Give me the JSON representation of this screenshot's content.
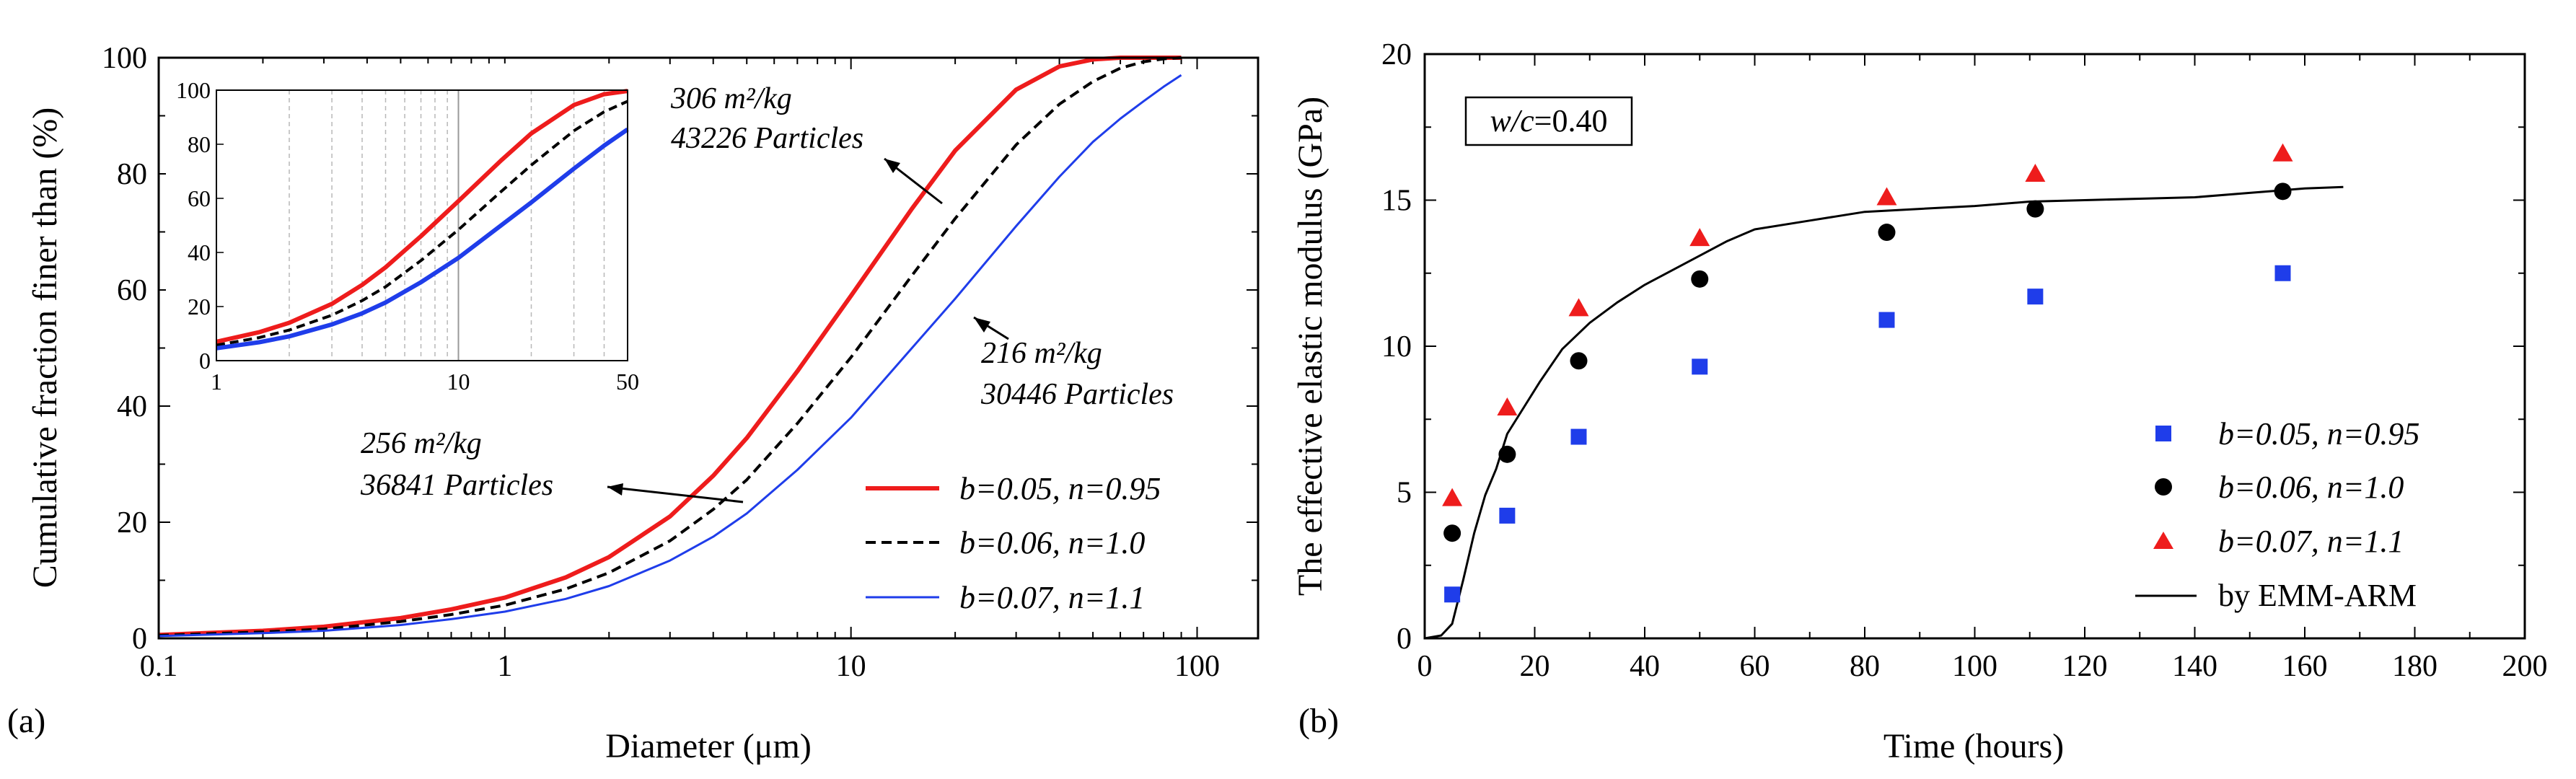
{
  "colors": {
    "red": "#ee1c1c",
    "blue": "#1f3dea",
    "black": "#000000"
  },
  "chart_data": [
    {
      "type": "line",
      "panel_label": "(a)",
      "xlabel": "Diameter (μm)",
      "ylabel": "Cumulative fraction finer than (%)",
      "xscale": "log",
      "xlim": [
        0.1,
        150
      ],
      "ylim": [
        0,
        100
      ],
      "x_ticks": [
        0.1,
        1,
        10,
        100
      ],
      "x_tick_labels": [
        "0.1",
        "1",
        "10",
        "100"
      ],
      "y_ticks": [
        0,
        20,
        40,
        60,
        80,
        100
      ],
      "y_tick_labels": [
        "0",
        "20",
        "40",
        "60",
        "80",
        "100"
      ],
      "x": [
        0.1,
        0.2,
        0.3,
        0.5,
        0.7,
        1,
        1.5,
        2,
        3,
        4,
        5,
        7,
        10,
        15,
        20,
        30,
        40,
        50,
        60,
        70,
        80,
        90
      ],
      "series": [
        {
          "name": "b=0.05, n=0.95",
          "color": "#ee1c1c",
          "style": "solid",
          "width": 6,
          "values": [
            0.6,
            1.3,
            2.0,
            3.5,
            5.0,
            7.0,
            10.5,
            14.0,
            21.0,
            28.0,
            34.5,
            46.0,
            59.0,
            74.0,
            84.0,
            94.5,
            98.5,
            99.7,
            100,
            100,
            100,
            100
          ]
        },
        {
          "name": "b=0.06, n=1.0",
          "color": "#000000",
          "style": "dashed",
          "width": 4,
          "values": [
            0.5,
            1.1,
            1.6,
            2.9,
            4.1,
            5.7,
            8.5,
            11.3,
            16.8,
            22.2,
            27.3,
            37.0,
            48.4,
            62.5,
            72.3,
            85.0,
            92.0,
            95.9,
            98.2,
            99.3,
            99.8,
            100
          ]
        },
        {
          "name": "b=0.07, n=1.1",
          "color": "#1f3dea",
          "style": "solid",
          "width": 3,
          "values": [
            0.4,
            0.9,
            1.3,
            2.3,
            3.3,
            4.6,
            6.8,
            9.0,
            13.4,
            17.5,
            21.5,
            29.0,
            38.0,
            50.0,
            58.5,
            71.0,
            79.5,
            85.5,
            89.5,
            92.5,
            95.0,
            97.0
          ]
        }
      ],
      "annotations": [
        {
          "line1": "306 m²/kg",
          "line2": "43226 Particles"
        },
        {
          "line1": "216 m²/kg",
          "line2": "30446 Particles"
        },
        {
          "line1": "256 m²/kg",
          "line2": "36841 Particles"
        }
      ],
      "legend_position": "bottom-right",
      "inset": {
        "xscale": "log",
        "xlim": [
          1,
          50
        ],
        "ylim": [
          0,
          100
        ],
        "x_tick_labels": [
          "1",
          "10",
          "50"
        ],
        "y_tick_labels": [
          "0",
          "20",
          "40",
          "60",
          "80",
          "100"
        ],
        "x": [
          1,
          1.5,
          2,
          3,
          4,
          5,
          7,
          10,
          15,
          20,
          30,
          40,
          50
        ],
        "series": [
          {
            "name": "b=0.05, n=0.95",
            "values": [
              7.0,
              10.5,
              14.0,
              21.0,
              28.0,
              34.5,
              46.0,
              59.0,
              74.0,
              84.0,
              94.5,
              98.5,
              99.7
            ]
          },
          {
            "name": "b=0.06, n=1.0",
            "values": [
              5.7,
              8.5,
              11.3,
              16.8,
              22.2,
              27.3,
              37.0,
              48.4,
              62.5,
              72.3,
              85.0,
              92.0,
              95.9
            ]
          },
          {
            "name": "b=0.07, n=1.1",
            "values": [
              4.6,
              6.8,
              9.0,
              13.4,
              17.5,
              21.5,
              29.0,
              38.0,
              50.0,
              58.5,
              71.0,
              79.5,
              85.5
            ]
          }
        ]
      }
    },
    {
      "type": "scatter",
      "panel_label": "(b)",
      "xlabel": "Time (hours)",
      "ylabel": "The effective elastic modulus (GPa)",
      "xlim": [
        0,
        200
      ],
      "ylim": [
        0,
        20
      ],
      "x_ticks": [
        0,
        20,
        40,
        60,
        80,
        100,
        120,
        140,
        160,
        180,
        200
      ],
      "x_tick_labels": [
        "0",
        "20",
        "40",
        "60",
        "80",
        "100",
        "120",
        "140",
        "160",
        "180",
        "200"
      ],
      "y_ticks": [
        0,
        5,
        10,
        15,
        20
      ],
      "y_tick_labels": [
        "0",
        "5",
        "10",
        "15",
        "20"
      ],
      "textbox": {
        "italic": "w/c",
        "rest": "=0.40"
      },
      "series": [
        {
          "name": "b=0.05, n=0.95",
          "marker": "square",
          "color": "#1f3dea",
          "x": [
            5,
            15,
            28,
            50,
            84,
            111,
            156
          ],
          "y": [
            1.5,
            4.2,
            6.9,
            9.3,
            10.9,
            11.7,
            12.5
          ]
        },
        {
          "name": "b=0.06, n=1.0",
          "marker": "circle",
          "color": "#000000",
          "x": [
            5,
            15,
            28,
            50,
            84,
            111,
            156
          ],
          "y": [
            3.6,
            6.3,
            9.5,
            12.3,
            13.9,
            14.7,
            15.3
          ]
        },
        {
          "name": "b=0.07, n=1.1",
          "marker": "triangle",
          "color": "#ee1c1c",
          "x": [
            5,
            15,
            28,
            50,
            84,
            111,
            156
          ],
          "y": [
            4.8,
            7.9,
            11.3,
            13.7,
            15.1,
            15.9,
            16.6
          ]
        },
        {
          "name": "by EMM-ARM",
          "type": "line",
          "color": "#000000",
          "x": [
            0,
            3,
            5,
            7,
            9,
            11,
            13,
            15,
            18,
            21,
            25,
            30,
            35,
            40,
            45,
            50,
            55,
            60,
            70,
            80,
            90,
            100,
            110,
            120,
            130,
            140,
            150,
            160,
            167
          ],
          "y": [
            0,
            0.1,
            0.5,
            2.0,
            3.6,
            4.9,
            5.8,
            7.0,
            7.9,
            8.8,
            9.9,
            10.8,
            11.5,
            12.1,
            12.6,
            13.1,
            13.6,
            14.0,
            14.3,
            14.6,
            14.7,
            14.8,
            14.95,
            15.0,
            15.05,
            15.1,
            15.25,
            15.4,
            15.45
          ]
        }
      ],
      "legend_position": "bottom-right"
    }
  ]
}
